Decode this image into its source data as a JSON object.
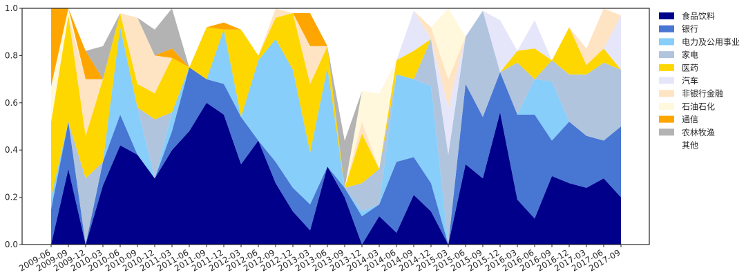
{
  "chart_data": {
    "type": "area",
    "stacked": true,
    "title": "",
    "xlabel": "",
    "ylabel": "",
    "ylim": [
      0,
      1
    ],
    "yticks": [
      "0.0",
      "0.2",
      "0.4",
      "0.6",
      "0.8",
      "1.0"
    ],
    "grid": false,
    "legend_position": "right",
    "x": [
      "2009-06",
      "2009-09",
      "2009-12",
      "2010-03",
      "2010-06",
      "2010-09",
      "2010-12",
      "2011-03",
      "2011-06",
      "2011-09",
      "2011-12",
      "2012-03",
      "2012-06",
      "2012-09",
      "2012-12",
      "2013-03",
      "2013-06",
      "2013-09",
      "2013-12",
      "2014-03",
      "2014-06",
      "2014-09",
      "2014-12",
      "2015-03",
      "2015-06",
      "2015-09",
      "2015-12",
      "2016-03",
      "2016-06",
      "2016-09",
      "2016-12",
      "2017-03",
      "2017-06",
      "2017-09"
    ],
    "series": [
      {
        "name": "食品饮料",
        "color": "#00008b",
        "values": [
          0.0,
          0.32,
          0.0,
          0.25,
          0.42,
          0.38,
          0.28,
          0.4,
          0.48,
          0.6,
          0.55,
          0.34,
          0.44,
          0.26,
          0.14,
          0.06,
          0.33,
          0.2,
          0.0,
          0.12,
          0.05,
          0.21,
          0.14,
          0.0,
          0.34,
          0.28,
          0.56,
          0.19,
          0.11,
          0.29,
          0.26,
          0.24,
          0.28,
          0.2
        ]
      },
      {
        "name": "银行",
        "color": "#4876d3",
        "values": [
          0.15,
          0.2,
          0.0,
          0.1,
          0.13,
          0.0,
          0.0,
          0.08,
          0.27,
          0.1,
          0.13,
          0.2,
          0.0,
          0.09,
          0.1,
          0.11,
          0.0,
          0.04,
          0.12,
          0.05,
          0.3,
          0.16,
          0.12,
          0.0,
          0.34,
          0.26,
          0.17,
          0.36,
          0.44,
          0.15,
          0.26,
          0.22,
          0.16,
          0.3
        ]
      },
      {
        "name": "电力及公用事业",
        "color": "#87cefa",
        "values": [
          0.05,
          0.0,
          0.0,
          0.0,
          0.37,
          0.2,
          0.0,
          0.08,
          0.0,
          0.0,
          0.23,
          0.0,
          0.34,
          0.52,
          0.5,
          0.22,
          0.42,
          0.0,
          0.02,
          0.0,
          0.37,
          0.33,
          0.41,
          0.0,
          0.0,
          0.0,
          0.0,
          0.0,
          0.15,
          0.25,
          0.0,
          0.0,
          0.0,
          0.0
        ]
      },
      {
        "name": "家电",
        "color": "#b0c4de",
        "values": [
          0.0,
          0.0,
          0.28,
          0.0,
          0.0,
          0.0,
          0.25,
          0.0,
          0.0,
          0.0,
          0.0,
          0.0,
          0.0,
          0.0,
          0.0,
          0.0,
          0.0,
          0.0,
          0.12,
          0.15,
          0.0,
          0.0,
          0.2,
          0.38,
          0.2,
          0.45,
          0.0,
          0.22,
          0.0,
          0.09,
          0.2,
          0.26,
          0.33,
          0.24
        ]
      },
      {
        "name": "医药",
        "color": "#ffd700",
        "values": [
          0.32,
          0.45,
          0.18,
          0.35,
          0.06,
          0.1,
          0.11,
          0.23,
          0.0,
          0.22,
          0.0,
          0.37,
          0.02,
          0.09,
          0.24,
          0.29,
          0.09,
          0.0,
          0.21,
          0.0,
          0.06,
          0.12,
          0.0,
          0.0,
          0.0,
          0.0,
          0.0,
          0.05,
          0.13,
          0.0,
          0.2,
          0.04,
          0.06,
          0.0
        ]
      },
      {
        "name": "汽车",
        "color": "#e6e6fa",
        "values": [
          0.0,
          0.0,
          0.0,
          0.0,
          0.0,
          0.0,
          0.0,
          0.0,
          0.0,
          0.0,
          0.0,
          0.0,
          0.0,
          0.0,
          0.0,
          0.0,
          0.0,
          0.0,
          0.0,
          0.0,
          0.0,
          0.17,
          0.0,
          0.2,
          0.0,
          0.0,
          0.22,
          0.0,
          0.12,
          0.0,
          0.0,
          0.0,
          0.0,
          0.23
        ]
      },
      {
        "name": "非银行金融",
        "color": "#ffe4c4",
        "values": [
          0.0,
          0.0,
          0.24,
          0.0,
          0.0,
          0.28,
          0.16,
          0.0,
          0.0,
          0.0,
          0.0,
          0.0,
          0.0,
          0.04,
          0.0,
          0.16,
          0.0,
          0.0,
          0.05,
          0.0,
          0.0,
          0.0,
          0.05,
          0.12,
          0.0,
          0.0,
          0.0,
          0.0,
          0.0,
          0.0,
          0.0,
          0.07,
          0.17,
          0.0
        ]
      },
      {
        "name": "石油石化",
        "color": "#fff8dc",
        "values": [
          0.15,
          0.03,
          0.0,
          0.0,
          0.0,
          0.0,
          0.0,
          0.0,
          0.0,
          0.0,
          0.0,
          0.0,
          0.0,
          0.0,
          0.0,
          0.0,
          0.0,
          0.0,
          0.13,
          0.32,
          0.0,
          0.0,
          0.0,
          0.3,
          0.0,
          0.0,
          0.0,
          0.0,
          0.0,
          0.0,
          0.0,
          0.0,
          0.0,
          0.0
        ]
      },
      {
        "name": "通信",
        "color": "#ffa500",
        "values": [
          0.33,
          0.0,
          0.12,
          0.0,
          0.0,
          0.0,
          0.0,
          0.04,
          0.0,
          0.0,
          0.03,
          0.0,
          0.0,
          0.0,
          0.0,
          0.14,
          0.0,
          0.0,
          0.0,
          0.0,
          0.0,
          0.0,
          0.0,
          0.0,
          0.0,
          0.0,
          0.0,
          0.0,
          0.0,
          0.0,
          0.0,
          0.0,
          0.0,
          0.0
        ]
      },
      {
        "name": "农林牧渔",
        "color": "#b3b3b3",
        "values": [
          0.0,
          0.0,
          0.0,
          0.14,
          0.0,
          0.0,
          0.11,
          0.17,
          0.0,
          0.0,
          0.0,
          0.0,
          0.0,
          0.0,
          0.0,
          0.0,
          0.0,
          0.2,
          0.0,
          0.0,
          0.0,
          0.0,
          0.0,
          0.0,
          0.0,
          0.0,
          0.0,
          0.0,
          0.0,
          0.0,
          0.0,
          0.0,
          0.0,
          0.0
        ]
      },
      {
        "name": "其他",
        "color": "#ffffff",
        "values": [
          0.0,
          0.0,
          0.18,
          0.16,
          0.02,
          0.04,
          0.09,
          0.0,
          0.25,
          0.08,
          0.06,
          0.09,
          0.2,
          0.0,
          0.02,
          0.02,
          0.16,
          0.56,
          0.35,
          0.36,
          0.22,
          0.01,
          0.08,
          0.0,
          0.12,
          0.01,
          0.05,
          0.18,
          0.05,
          0.22,
          0.08,
          0.17,
          0.0,
          0.03
        ]
      }
    ]
  }
}
